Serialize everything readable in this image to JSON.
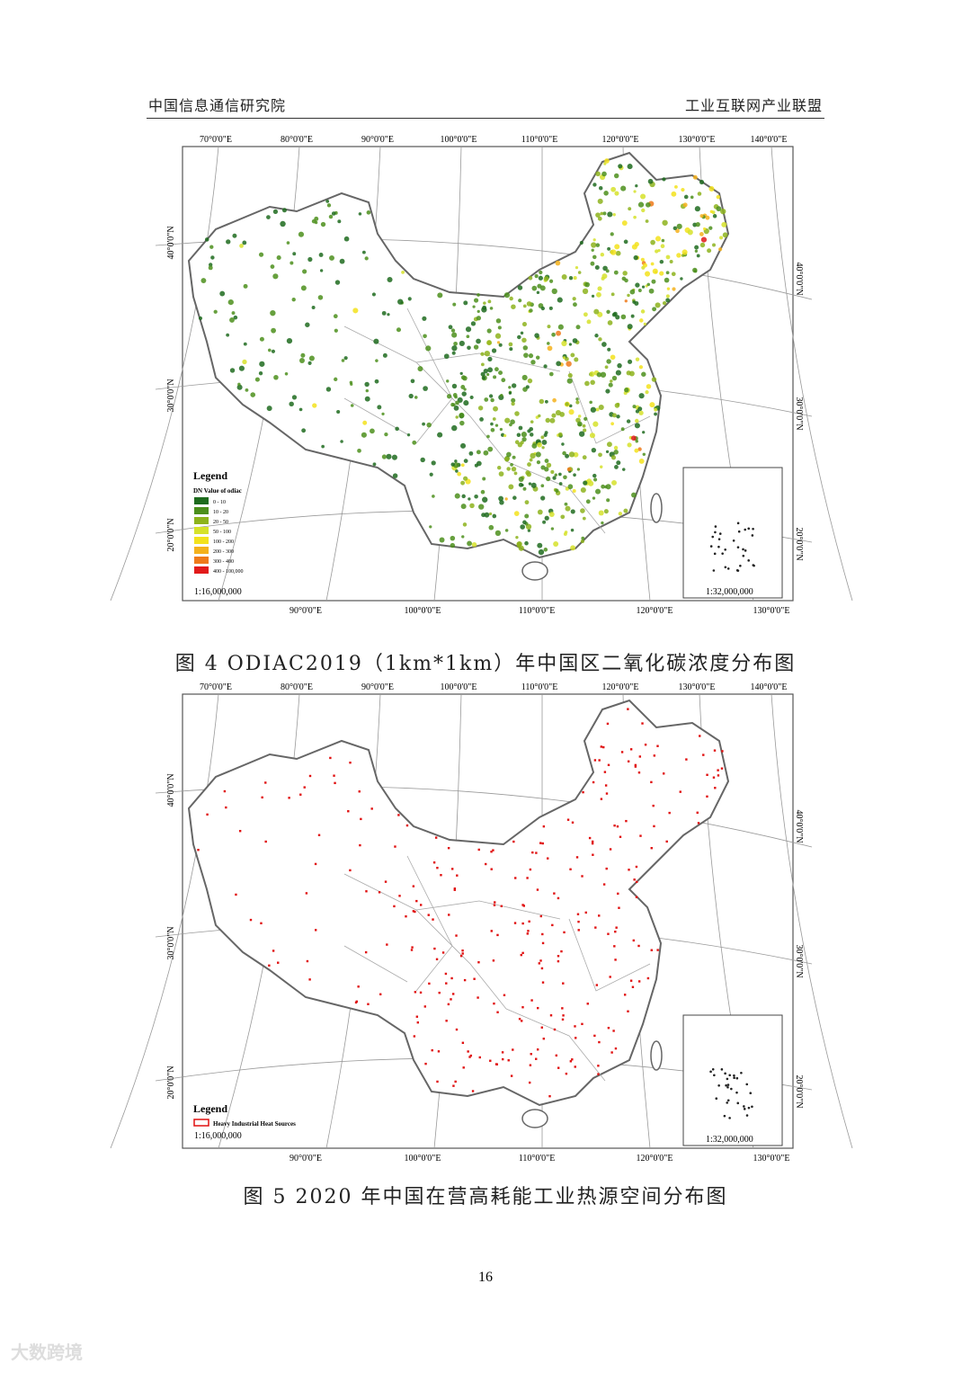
{
  "header": {
    "left": "中国信息通信研究院",
    "right": "工业互联网产业联盟"
  },
  "figures": [
    {
      "top_ticks": [
        "70°0'0\"E",
        "80°0'0\"E",
        "90°0'0\"E",
        "100°0'0\"E",
        "110°0'0\"E",
        "120°0'0\"E",
        "130°0'0\"E",
        "140°0'0\"E"
      ],
      "bottom_ticks": [
        "90°0'0\"E",
        "100°0'0\"E",
        "110°0'0\"E",
        "120°0'0\"E",
        "130°0'0\"E"
      ],
      "left_ticks": [
        "40°0'0\"N",
        "30°0'0\"N",
        "20°0'0\"N"
      ],
      "right_ticks": [
        "40°0'0\"N",
        "30°0'0\"N",
        "20°0'0\"N"
      ],
      "legend": {
        "title": "Legend",
        "subtitle": "DN Value of odiac",
        "items": [
          {
            "label": "0 - 10",
            "color": "#1e6b1e"
          },
          {
            "label": "10 - 20",
            "color": "#4c8f1c"
          },
          {
            "label": "20 - 50",
            "color": "#8db31c"
          },
          {
            "label": "50 - 100",
            "color": "#d6e22a"
          },
          {
            "label": "100 - 200",
            "color": "#f3e21c"
          },
          {
            "label": "200 - 300",
            "color": "#f4b21c"
          },
          {
            "label": "300 - 400",
            "color": "#ef7a1a"
          },
          {
            "label": "400 - 100,000",
            "color": "#e21a1a"
          }
        ]
      },
      "scale": "1:16,000,000",
      "inset_scale": "1:32,000,000",
      "caption": "图 4 ODIAC2019（1km*1km）年中国区二氧化碳浓度分布图"
    },
    {
      "top_ticks": [
        "70°0'0\"E",
        "80°0'0\"E",
        "90°0'0\"E",
        "100°0'0\"E",
        "110°0'0\"E",
        "120°0'0\"E",
        "130°0'0\"E",
        "140°0'0\"E"
      ],
      "bottom_ticks": [
        "90°0'0\"E",
        "100°0'0\"E",
        "110°0'0\"E",
        "120°0'0\"E",
        "130°0'0\"E"
      ],
      "left_ticks": [
        "40°0'0\"N",
        "30°0'0\"N",
        "20°0'0\"N"
      ],
      "right_ticks": [
        "40°0'0\"N",
        "30°0'0\"N",
        "20°0'0\"N"
      ],
      "legend": {
        "title": "Legend",
        "items": [
          {
            "label": "Heavy Industrial Heat Sources",
            "color": "#e01010"
          }
        ]
      },
      "scale": "1:16,000,000",
      "inset_scale": "1:32,000,000",
      "caption": "图 5 2020 年中国在营高耗能工业热源空间分布图"
    }
  ],
  "page_number": "16",
  "watermark": "大数跨境"
}
